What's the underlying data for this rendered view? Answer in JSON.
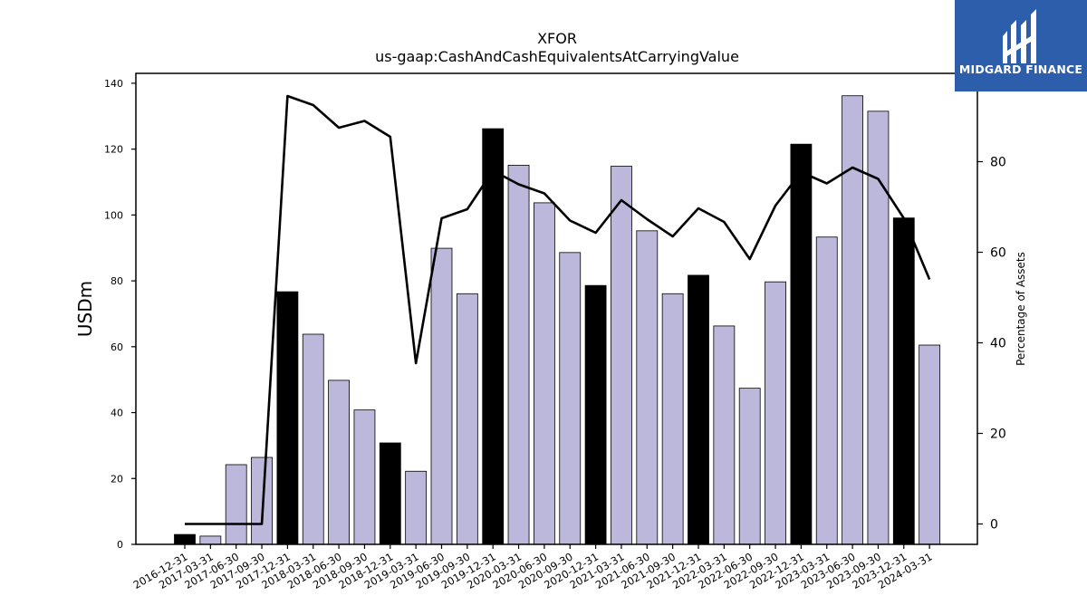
{
  "logo": {
    "text": "MIDGARD FINANCE",
    "bg_color": "#2d5eac"
  },
  "chart_data": {
    "type": "bar",
    "title": "XFOR",
    "subtitle": "us-gaap:CashAndCashEquivalentsAtCarryingValue",
    "ylabel": "USDm",
    "ylabel_right": "Percentage of Assets",
    "ylim": [
      0,
      143
    ],
    "ylim_right": [
      -4.5,
      99.5
    ],
    "yticks": [
      0,
      20,
      40,
      60,
      80,
      100,
      120,
      140
    ],
    "yticks_right": [
      0,
      20,
      40,
      60,
      80
    ],
    "grid": false,
    "categories": [
      "2016-12-31",
      "2017-03-31",
      "2017-06-30",
      "2017-09-30",
      "2017-12-31",
      "2018-03-31",
      "2018-06-30",
      "2018-09-30",
      "2018-12-31",
      "2019-03-31",
      "2019-06-30",
      "2019-09-30",
      "2019-12-31",
      "2020-03-31",
      "2020-06-30",
      "2020-09-30",
      "2020-12-31",
      "2021-03-31",
      "2021-06-30",
      "2021-09-30",
      "2021-12-31",
      "2022-03-31",
      "2022-06-30",
      "2022-09-30",
      "2022-12-31",
      "2023-03-31",
      "2023-06-30",
      "2023-09-30",
      "2023-12-31",
      "2024-03-31"
    ],
    "series": [
      {
        "axis": "left",
        "kind": "bar",
        "values": [
          3,
          2.5,
          24.2,
          26.4,
          76.7,
          63.8,
          49.8,
          40.8,
          30.8,
          22.2,
          89.9,
          76.1,
          126.2,
          115.1,
          103.7,
          88.6,
          78.6,
          114.8,
          95.2,
          76.1,
          81.7,
          66.3,
          47.4,
          79.7,
          121.5,
          93.3,
          136.2,
          131.5,
          99.1,
          60.5
        ],
        "highlight": [
          true,
          false,
          false,
          false,
          true,
          false,
          false,
          false,
          true,
          false,
          false,
          false,
          true,
          false,
          false,
          false,
          true,
          false,
          false,
          false,
          true,
          false,
          false,
          false,
          true,
          false,
          false,
          false,
          true,
          false
        ],
        "color": "#bcb8db",
        "highlight_color": "#000000"
      },
      {
        "axis": "right",
        "kind": "line",
        "values": [
          0,
          0,
          0,
          0,
          94.5,
          92.5,
          87.5,
          89,
          85.5,
          35.5,
          67.5,
          69.5,
          78,
          75,
          73,
          67,
          64.3,
          71.5,
          67.3,
          63.5,
          69.7,
          66.7,
          58.5,
          70.3,
          77.7,
          75.2,
          78.7,
          76.2,
          67.5,
          54
        ],
        "color": "#000000"
      }
    ]
  }
}
